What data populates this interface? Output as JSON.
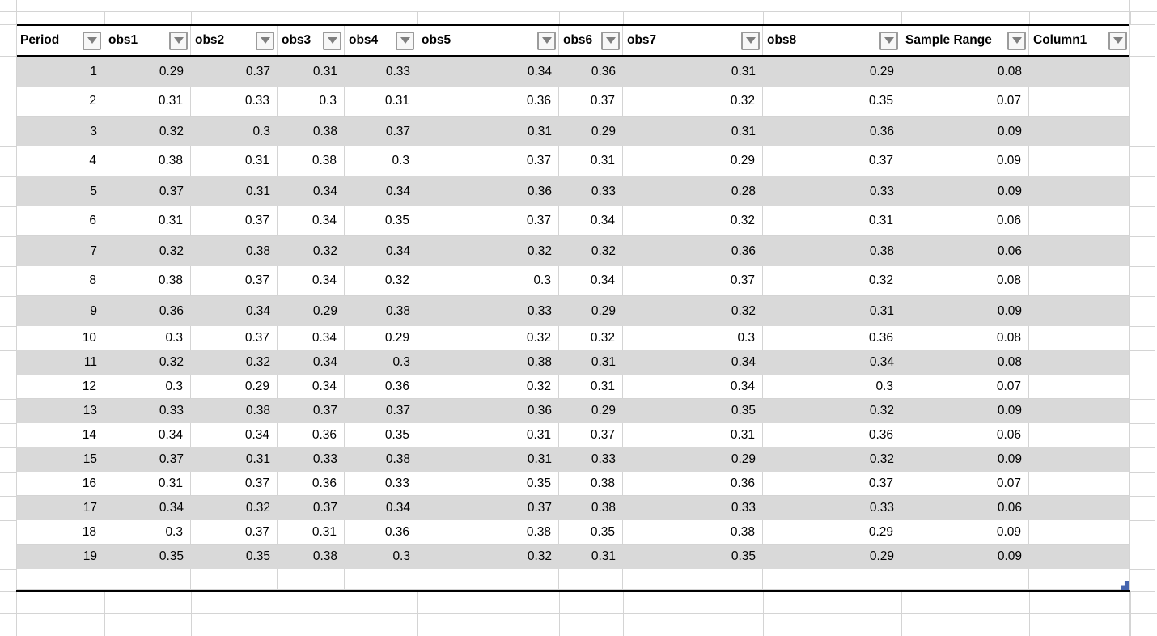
{
  "sheet": {
    "table": {
      "columns": [
        "Period",
        "obs1",
        "obs2",
        "obs3",
        "obs4",
        "obs5",
        "obs6",
        "obs7",
        "obs8",
        "Sample Range",
        "Column1"
      ],
      "rows": [
        [
          "1",
          "0.29",
          "0.37",
          "0.31",
          "0.33",
          "0.34",
          "0.36",
          "0.31",
          "0.29",
          "0.08",
          ""
        ],
        [
          "2",
          "0.31",
          "0.33",
          "0.3",
          "0.31",
          "0.36",
          "0.37",
          "0.32",
          "0.35",
          "0.07",
          ""
        ],
        [
          "3",
          "0.32",
          "0.3",
          "0.38",
          "0.37",
          "0.31",
          "0.29",
          "0.31",
          "0.36",
          "0.09",
          ""
        ],
        [
          "4",
          "0.38",
          "0.31",
          "0.38",
          "0.3",
          "0.37",
          "0.31",
          "0.29",
          "0.37",
          "0.09",
          ""
        ],
        [
          "5",
          "0.37",
          "0.31",
          "0.34",
          "0.34",
          "0.36",
          "0.33",
          "0.28",
          "0.33",
          "0.09",
          ""
        ],
        [
          "6",
          "0.31",
          "0.37",
          "0.34",
          "0.35",
          "0.37",
          "0.34",
          "0.32",
          "0.31",
          "0.06",
          ""
        ],
        [
          "7",
          "0.32",
          "0.38",
          "0.32",
          "0.34",
          "0.32",
          "0.32",
          "0.36",
          "0.38",
          "0.06",
          ""
        ],
        [
          "8",
          "0.38",
          "0.37",
          "0.34",
          "0.32",
          "0.3",
          "0.34",
          "0.37",
          "0.32",
          "0.08",
          ""
        ],
        [
          "9",
          "0.36",
          "0.34",
          "0.29",
          "0.38",
          "0.33",
          "0.29",
          "0.32",
          "0.31",
          "0.09",
          ""
        ],
        [
          "10",
          "0.3",
          "0.37",
          "0.34",
          "0.29",
          "0.32",
          "0.32",
          "0.3",
          "0.36",
          "0.08",
          ""
        ],
        [
          "11",
          "0.32",
          "0.32",
          "0.34",
          "0.3",
          "0.38",
          "0.31",
          "0.34",
          "0.34",
          "0.08",
          ""
        ],
        [
          "12",
          "0.3",
          "0.29",
          "0.34",
          "0.36",
          "0.32",
          "0.31",
          "0.34",
          "0.3",
          "0.07",
          ""
        ],
        [
          "13",
          "0.33",
          "0.38",
          "0.37",
          "0.37",
          "0.36",
          "0.29",
          "0.35",
          "0.32",
          "0.09",
          ""
        ],
        [
          "14",
          "0.34",
          "0.34",
          "0.36",
          "0.35",
          "0.31",
          "0.37",
          "0.31",
          "0.36",
          "0.06",
          ""
        ],
        [
          "15",
          "0.37",
          "0.31",
          "0.33",
          "0.38",
          "0.31",
          "0.33",
          "0.29",
          "0.32",
          "0.09",
          ""
        ],
        [
          "16",
          "0.31",
          "0.37",
          "0.36",
          "0.33",
          "0.35",
          "0.38",
          "0.36",
          "0.37",
          "0.07",
          ""
        ],
        [
          "17",
          "0.34",
          "0.32",
          "0.37",
          "0.34",
          "0.37",
          "0.38",
          "0.33",
          "0.33",
          "0.06",
          ""
        ],
        [
          "18",
          "0.3",
          "0.37",
          "0.31",
          "0.36",
          "0.38",
          "0.35",
          "0.38",
          "0.29",
          "0.09",
          ""
        ],
        [
          "19",
          "0.35",
          "0.35",
          "0.38",
          "0.3",
          "0.32",
          "0.31",
          "0.35",
          "0.29",
          "0.09",
          ""
        ]
      ]
    },
    "filter_icon": "chevron-down-icon",
    "filter_icon_glyph": "▼",
    "colors": {
      "band": "#d9d9d9",
      "gridline": "#d4d4d4",
      "table_border": "#000000",
      "resize_handle": "#4464ae"
    }
  }
}
